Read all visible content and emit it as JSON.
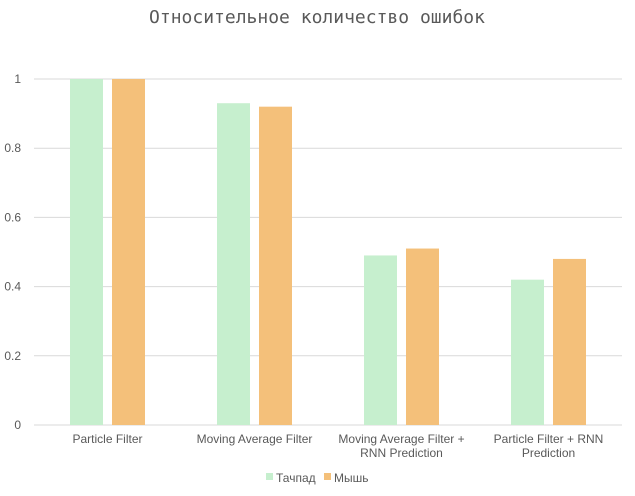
{
  "chart_data": {
    "type": "bar",
    "title": "Относительное количество ошибок",
    "categories": [
      [
        "Particle Filter"
      ],
      [
        "Moving Average Filter"
      ],
      [
        "Moving Average Filter +",
        "RNN Prediction"
      ],
      [
        "Particle Filter + RNN",
        "Prediction"
      ]
    ],
    "series": [
      {
        "name": "Тачпад",
        "color": "#c6efce",
        "values": [
          1.0,
          0.93,
          0.49,
          0.42
        ]
      },
      {
        "name": "Мышь",
        "color": "#f4c07a",
        "values": [
          1.0,
          0.92,
          0.51,
          0.48
        ]
      }
    ],
    "ylim": [
      0,
      1
    ],
    "yticks": [
      "0",
      "0.2",
      "0.4",
      "0.6",
      "0.8",
      "1"
    ],
    "grid": true,
    "legend_position": "bottom"
  }
}
